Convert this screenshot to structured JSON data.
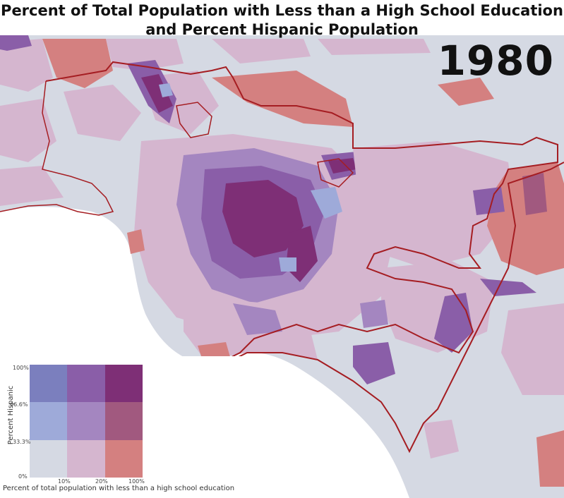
{
  "title_line1": "Percent of Total Population with Less than a High School Education",
  "title_line2": "and Percent Hispanic Population",
  "year": "1980",
  "colors": {
    "background_map": "#d5d9e3",
    "ocean": "#ffffff",
    "boundary": "#a51d22"
  },
  "legend": {
    "y_axis_label": "Percent Hispanic",
    "x_axis_label": "Percent of total population with less than a high school education",
    "y_ticks": [
      "100%",
      "66.6%",
      "33.3%",
      "0%"
    ],
    "x_ticks": [
      "10%",
      "20%",
      "100%"
    ],
    "cells": [
      {
        "hispanic": "high",
        "education": "low",
        "color": "#7b7fbe"
      },
      {
        "hispanic": "high",
        "education": "mid",
        "color": "#8a5ea8"
      },
      {
        "hispanic": "high",
        "education": "high",
        "color": "#7e2f76"
      },
      {
        "hispanic": "mid",
        "education": "low",
        "color": "#9eaad9"
      },
      {
        "hispanic": "mid",
        "education": "mid",
        "color": "#a486c0"
      },
      {
        "hispanic": "mid",
        "education": "high",
        "color": "#a1597f"
      },
      {
        "hispanic": "low",
        "education": "low",
        "color": "#d5d9e3"
      },
      {
        "hispanic": "low",
        "education": "mid",
        "color": "#d5b6cf"
      },
      {
        "hispanic": "low",
        "education": "high",
        "color": "#d48080"
      }
    ]
  }
}
